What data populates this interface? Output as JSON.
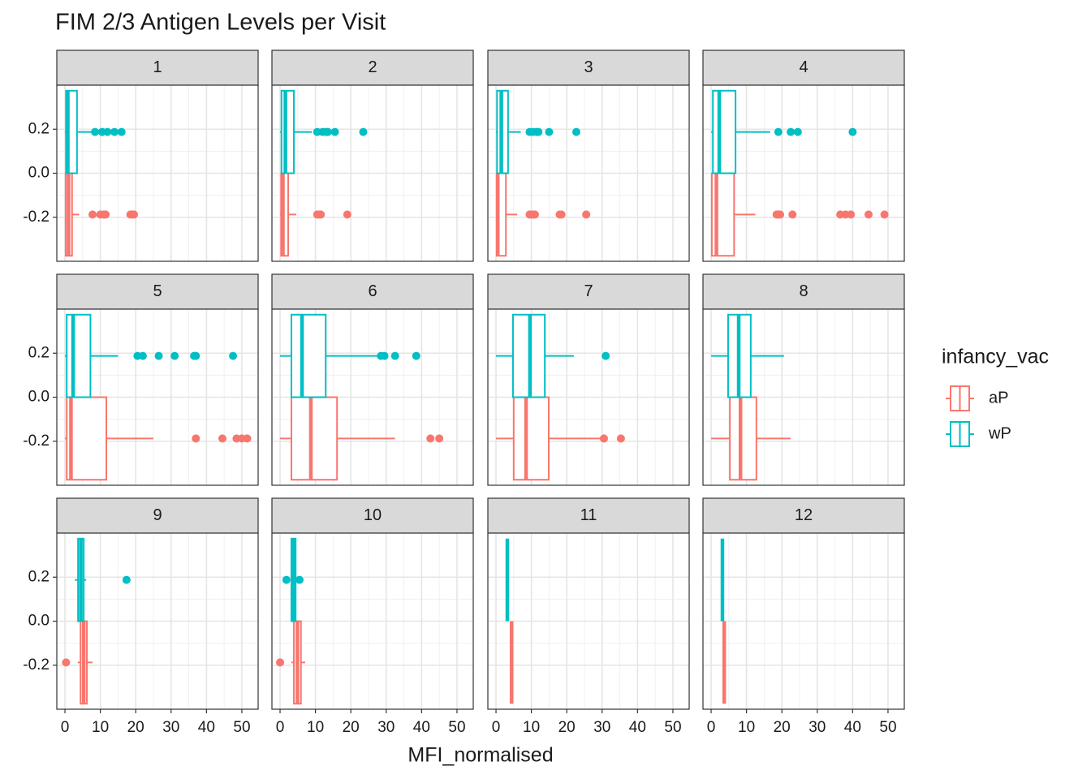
{
  "chart_data": {
    "type": "box",
    "title": "FIM 2/3 Antigen Levels per Visit",
    "x_label": "MFI_normalised",
    "legend_title": "infancy_vac",
    "xlim": [
      -2.3,
      54.6
    ],
    "xticks": [
      0,
      10,
      20,
      30,
      40,
      50
    ],
    "ylim": [
      -0.4,
      0.4
    ],
    "yticks": [
      -0.2,
      {
        "value": 0,
        "label": "0.0"
      },
      0.2
    ],
    "grid": true,
    "series": [
      {
        "name": "aP",
        "color": "#f8766d"
      },
      {
        "name": "wP",
        "color": "#00bfc4"
      }
    ],
    "facets": [
      {
        "title": "1",
        "boxes": [
          {
            "min": 0,
            "q1": 0.2,
            "median": 1,
            "q3": 2,
            "max": 4,
            "outliers": [
              7.8,
              10,
              11,
              11.5,
              18.5,
              19,
              19.5
            ]
          },
          {
            "min": 0,
            "q1": 0.3,
            "median": 0.8,
            "q3": 3.4,
            "max": 7.5,
            "outliers": [
              8.5,
              10.5,
              12,
              14,
              16
            ]
          }
        ]
      },
      {
        "title": "2",
        "boxes": [
          {
            "min": 0,
            "q1": 0.3,
            "median": 0.8,
            "q3": 2.3,
            "max": 4.6,
            "outliers": [
              10.5,
              11,
              11.5,
              19
            ]
          },
          {
            "min": 0,
            "q1": 0.4,
            "median": 1.5,
            "q3": 3.9,
            "max": 9,
            "outliers": [
              10.5,
              12,
              13,
              13.5,
              15.5,
              23.5
            ]
          }
        ]
      },
      {
        "title": "3",
        "boxes": [
          {
            "min": 0,
            "q1": 0.2,
            "median": 0.5,
            "q3": 2.8,
            "max": 6,
            "outliers": [
              9.5,
              10,
              10.5,
              11,
              18,
              18.5,
              25.5
            ]
          },
          {
            "min": 0,
            "q1": 0.3,
            "median": 1.5,
            "q3": 3.4,
            "max": 7,
            "outliers": [
              9.5,
              10.5,
              11.5,
              12,
              15,
              22.7
            ]
          }
        ]
      },
      {
        "title": "4",
        "boxes": [
          {
            "min": 0,
            "q1": 0.2,
            "median": 1.5,
            "q3": 6.5,
            "max": 12.5,
            "outliers": [
              18.5,
              19,
              19.5,
              23,
              36.5,
              38,
              39.5,
              44.5,
              49
            ]
          },
          {
            "min": 0,
            "q1": 0.5,
            "median": 2.3,
            "q3": 6.9,
            "max": 16.7,
            "outliers": [
              19,
              22.5,
              24.5,
              40
            ]
          }
        ]
      },
      {
        "title": "5",
        "boxes": [
          {
            "min": 0,
            "q1": 0.5,
            "median": 1.7,
            "q3": 11.7,
            "max": 25,
            "outliers": [
              37,
              44.5,
              48.5,
              50,
              51.5
            ]
          },
          {
            "min": 0,
            "q1": 0.5,
            "median": 2.3,
            "q3": 7.2,
            "max": 15,
            "outliers": [
              20.5,
              22,
              26.5,
              31,
              36.5,
              37,
              47.5
            ]
          }
        ]
      },
      {
        "title": "6",
        "boxes": [
          {
            "min": 0,
            "q1": 3.2,
            "median": 8.7,
            "q3": 16.1,
            "max": 32.5,
            "outliers": [
              42.5,
              45
            ]
          },
          {
            "min": 0,
            "q1": 3.2,
            "median": 6.2,
            "q3": 12.9,
            "max": 28,
            "outliers": [
              28.5,
              29.5,
              32.5,
              38.5
            ]
          }
        ]
      },
      {
        "title": "7",
        "boxes": [
          {
            "min": 0,
            "q1": 5,
            "median": 8.5,
            "q3": 14.9,
            "max": 29.5,
            "outliers": [
              30.5,
              35.3
            ]
          },
          {
            "min": 0,
            "q1": 4.8,
            "median": 9.6,
            "q3": 13.8,
            "max": 22,
            "outliers": [
              31
            ]
          }
        ]
      },
      {
        "title": "8",
        "boxes": [
          {
            "min": 0,
            "q1": 5.3,
            "median": 8.3,
            "q3": 12.8,
            "max": 22.5,
            "outliers": []
          },
          {
            "min": 0,
            "q1": 4.8,
            "median": 7.8,
            "q3": 11.2,
            "max": 20.6,
            "outliers": []
          }
        ]
      },
      {
        "title": "9",
        "boxes": [
          {
            "min": 3.6,
            "q1": 4.4,
            "median": 5.3,
            "q3": 6.2,
            "max": 7.8,
            "outliers": [
              0.3
            ]
          },
          {
            "min": 2.8,
            "q1": 3.7,
            "median": 4.5,
            "q3": 5.3,
            "max": 6,
            "outliers": [
              17.4
            ]
          }
        ]
      },
      {
        "title": "10",
        "boxes": [
          {
            "min": 3.2,
            "q1": 3.9,
            "median": 4.9,
            "q3": 5.9,
            "max": 7.1,
            "outliers": [
              0
            ]
          },
          {
            "min": 3.2,
            "q1": 3.2,
            "median": 3.8,
            "q3": 4.4,
            "max": 4.4,
            "outliers": [
              1.8,
              5.5
            ]
          }
        ]
      },
      {
        "title": "11",
        "boxes": [
          {
            "min": 4.4,
            "q1": 4.4,
            "median": 4.4,
            "q3": 4.4,
            "max": 4.4,
            "outliers": []
          },
          {
            "min": 3.2,
            "q1": 3.2,
            "median": 3.2,
            "q3": 3.2,
            "max": 3.2,
            "outliers": []
          }
        ]
      },
      {
        "title": "12",
        "boxes": [
          {
            "min": 3.7,
            "q1": 3.7,
            "median": 3.7,
            "q3": 3.7,
            "max": 3.7,
            "outliers": []
          },
          {
            "min": 3.2,
            "q1": 3.2,
            "median": 3.2,
            "q3": 3.2,
            "max": 3.2,
            "outliers": []
          }
        ]
      }
    ]
  }
}
